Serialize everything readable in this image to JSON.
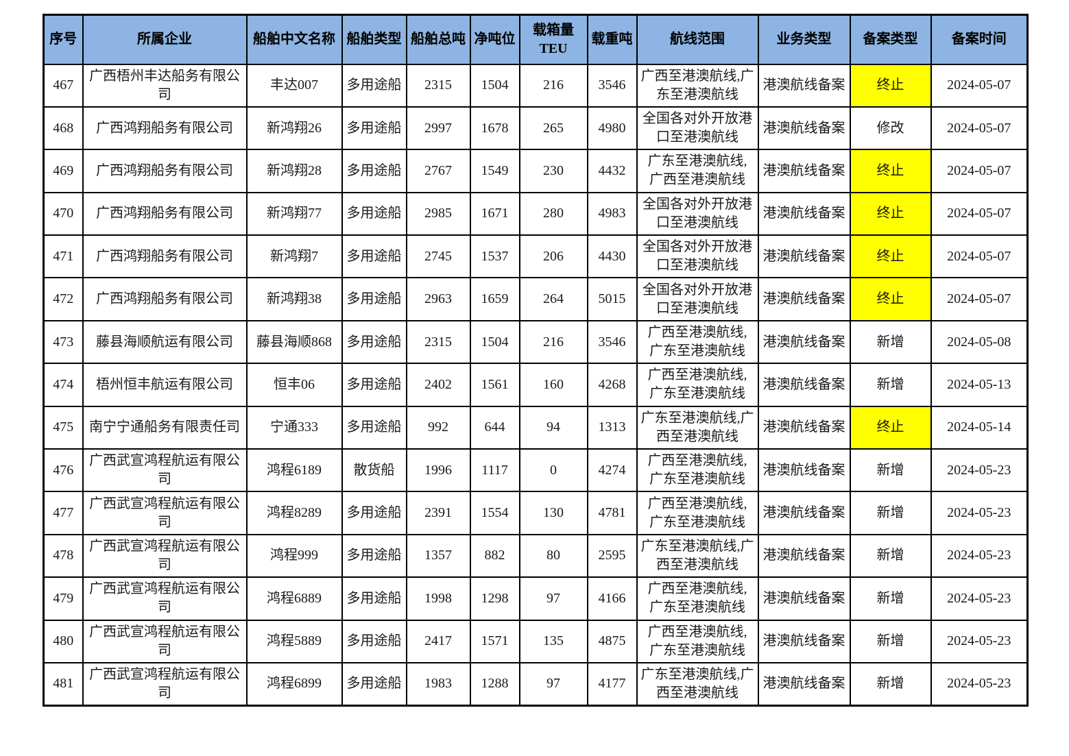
{
  "table": {
    "columns": [
      "序号",
      "所属企业",
      "船舶中文名称",
      "船舶类型",
      "船舶总吨",
      "净吨位",
      "载箱量TEU",
      "载重吨",
      "航线范围",
      "业务类型",
      "备案类型",
      "备案时间"
    ],
    "colors": {
      "header_bg": "#8DB4E2",
      "highlight_bg": "#FFFF00",
      "border": "#000000"
    },
    "rows": [
      {
        "seq": "467",
        "company": "广西梧州丰达船务有限公司",
        "ship_name": "丰达007",
        "ship_type": "多用途船",
        "gross_tonnage": "2315",
        "net_tonnage": "1504",
        "teu": "216",
        "deadweight": "3546",
        "route": "广西至港澳航线,广东至港澳航线",
        "business_type": "港澳航线备案",
        "filing_type": "终止",
        "filing_type_highlight": true,
        "filing_date": "2024-05-07"
      },
      {
        "seq": "468",
        "company": "广西鸿翔船务有限公司",
        "ship_name": "新鸿翔26",
        "ship_type": "多用途船",
        "gross_tonnage": "2997",
        "net_tonnage": "1678",
        "teu": "265",
        "deadweight": "4980",
        "route": "全国各对外开放港口至港澳航线",
        "business_type": "港澳航线备案",
        "filing_type": "修改",
        "filing_type_highlight": false,
        "filing_date": "2024-05-07"
      },
      {
        "seq": "469",
        "company": "广西鸿翔船务有限公司",
        "ship_name": "新鸿翔28",
        "ship_type": "多用途船",
        "gross_tonnage": "2767",
        "net_tonnage": "1549",
        "teu": "230",
        "deadweight": "4432",
        "route": "广东至港澳航线, 广西至港澳航线",
        "business_type": "港澳航线备案",
        "filing_type": "终止",
        "filing_type_highlight": true,
        "filing_date": "2024-05-07"
      },
      {
        "seq": "470",
        "company": "广西鸿翔船务有限公司",
        "ship_name": "新鸿翔77",
        "ship_type": "多用途船",
        "gross_tonnage": "2985",
        "net_tonnage": "1671",
        "teu": "280",
        "deadweight": "4983",
        "route": "全国各对外开放港口至港澳航线",
        "business_type": "港澳航线备案",
        "filing_type": "终止",
        "filing_type_highlight": true,
        "filing_date": "2024-05-07"
      },
      {
        "seq": "471",
        "company": "广西鸿翔船务有限公司",
        "ship_name": "新鸿翔7",
        "ship_type": "多用途船",
        "gross_tonnage": "2745",
        "net_tonnage": "1537",
        "teu": "206",
        "deadweight": "4430",
        "route": "全国各对外开放港口至港澳航线",
        "business_type": "港澳航线备案",
        "filing_type": "终止",
        "filing_type_highlight": true,
        "filing_date": "2024-05-07"
      },
      {
        "seq": "472",
        "company": "广西鸿翔船务有限公司",
        "ship_name": "新鸿翔38",
        "ship_type": "多用途船",
        "gross_tonnage": "2963",
        "net_tonnage": "1659",
        "teu": "264",
        "deadweight": "5015",
        "route": "全国各对外开放港口至港澳航线",
        "business_type": "港澳航线备案",
        "filing_type": "终止",
        "filing_type_highlight": true,
        "filing_date": "2024-05-07"
      },
      {
        "seq": "473",
        "company": "藤县海顺航运有限公司",
        "ship_name": "藤县海顺868",
        "ship_type": "多用途船",
        "gross_tonnage": "2315",
        "net_tonnage": "1504",
        "teu": "216",
        "deadweight": "3546",
        "route": "广西至港澳航线, 广东至港澳航线",
        "business_type": "港澳航线备案",
        "filing_type": "新增",
        "filing_type_highlight": false,
        "filing_date": "2024-05-08"
      },
      {
        "seq": "474",
        "company": "梧州恒丰航运有限公司",
        "ship_name": "恒丰06",
        "ship_type": "多用途船",
        "gross_tonnage": "2402",
        "net_tonnage": "1561",
        "teu": "160",
        "deadweight": "4268",
        "route": "广西至港澳航线, 广东至港澳航线",
        "business_type": "港澳航线备案",
        "filing_type": "新增",
        "filing_type_highlight": false,
        "filing_date": "2024-05-13"
      },
      {
        "seq": "475",
        "company": "南宁宁通船务有限责任司",
        "ship_name": "宁通333",
        "ship_type": "多用途船",
        "gross_tonnage": "992",
        "net_tonnage": "644",
        "teu": "94",
        "deadweight": "1313",
        "route": "广东至港澳航线,广西至港澳航线",
        "business_type": "港澳航线备案",
        "filing_type": "终止",
        "filing_type_highlight": true,
        "filing_date": "2024-05-14"
      },
      {
        "seq": "476",
        "company": "广西武宣鸿程航运有限公司",
        "ship_name": "鸿程6189",
        "ship_type": "散货船",
        "gross_tonnage": "1996",
        "net_tonnage": "1117",
        "teu": "0",
        "deadweight": "4274",
        "route": "广西至港澳航线, 广东至港澳航线",
        "business_type": "港澳航线备案",
        "filing_type": "新增",
        "filing_type_highlight": false,
        "filing_date": "2024-05-23"
      },
      {
        "seq": "477",
        "company": "广西武宣鸿程航运有限公司",
        "ship_name": "鸿程8289",
        "ship_type": "多用途船",
        "gross_tonnage": "2391",
        "net_tonnage": "1554",
        "teu": "130",
        "deadweight": "4781",
        "route": "广西至港澳航线, 广东至港澳航线",
        "business_type": "港澳航线备案",
        "filing_type": "新增",
        "filing_type_highlight": false,
        "filing_date": "2024-05-23"
      },
      {
        "seq": "478",
        "company": "广西武宣鸿程航运有限公司",
        "ship_name": "鸿程999",
        "ship_type": "多用途船",
        "gross_tonnage": "1357",
        "net_tonnage": "882",
        "teu": "80",
        "deadweight": "2595",
        "route": "广东至港澳航线,广西至港澳航线",
        "business_type": "港澳航线备案",
        "filing_type": "新增",
        "filing_type_highlight": false,
        "filing_date": "2024-05-23"
      },
      {
        "seq": "479",
        "company": "广西武宣鸿程航运有限公司",
        "ship_name": "鸿程6889",
        "ship_type": "多用途船",
        "gross_tonnage": "1998",
        "net_tonnage": "1298",
        "teu": "97",
        "deadweight": "4166",
        "route": "广西至港澳航线, 广东至港澳航线",
        "business_type": "港澳航线备案",
        "filing_type": "新增",
        "filing_type_highlight": false,
        "filing_date": "2024-05-23"
      },
      {
        "seq": "480",
        "company": "广西武宣鸿程航运有限公司",
        "ship_name": "鸿程5889",
        "ship_type": "多用途船",
        "gross_tonnage": "2417",
        "net_tonnage": "1571",
        "teu": "135",
        "deadweight": "4875",
        "route": "广西至港澳航线, 广东至港澳航线",
        "business_type": "港澳航线备案",
        "filing_type": "新增",
        "filing_type_highlight": false,
        "filing_date": "2024-05-23"
      },
      {
        "seq": "481",
        "company": "广西武宣鸿程航运有限公司",
        "ship_name": "鸿程6899",
        "ship_type": "多用途船",
        "gross_tonnage": "1983",
        "net_tonnage": "1288",
        "teu": "97",
        "deadweight": "4177",
        "route": "广东至港澳航线,广西至港澳航线",
        "business_type": "港澳航线备案",
        "filing_type": "新增",
        "filing_type_highlight": false,
        "filing_date": "2024-05-23"
      }
    ]
  }
}
